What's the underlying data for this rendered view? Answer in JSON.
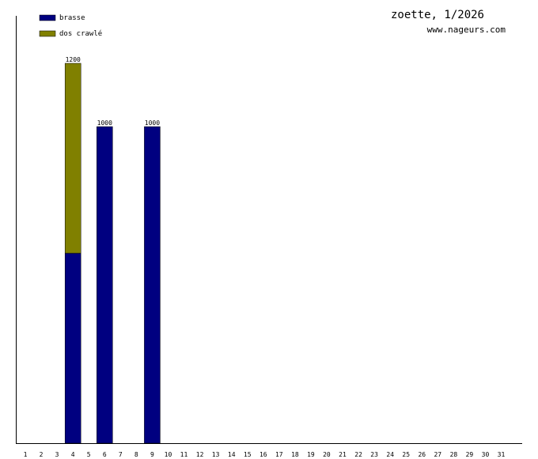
{
  "chart_data": {
    "type": "bar",
    "stacked": true,
    "title": "zoette, 1/2026",
    "subtitle": "www.nageurs.com",
    "categories": [
      "1",
      "2",
      "3",
      "4",
      "5",
      "6",
      "7",
      "8",
      "9",
      "10",
      "11",
      "12",
      "13",
      "14",
      "15",
      "16",
      "17",
      "18",
      "19",
      "20",
      "21",
      "22",
      "23",
      "24",
      "25",
      "26",
      "27",
      "28",
      "29",
      "30",
      "31"
    ],
    "series": [
      {
        "name": "brasse",
        "color": "#000080",
        "values": [
          0,
          0,
          0,
          600,
          0,
          1000,
          0,
          0,
          1000,
          0,
          0,
          0,
          0,
          0,
          0,
          0,
          0,
          0,
          0,
          0,
          0,
          0,
          0,
          0,
          0,
          0,
          0,
          0,
          0,
          0,
          0
        ]
      },
      {
        "name": "dos crawlé",
        "color": "#808000",
        "values": [
          0,
          0,
          0,
          600,
          0,
          0,
          0,
          0,
          0,
          0,
          0,
          0,
          0,
          0,
          0,
          0,
          0,
          0,
          0,
          0,
          0,
          0,
          0,
          0,
          0,
          0,
          0,
          0,
          0,
          0,
          0
        ]
      }
    ],
    "totals": [
      "",
      "",
      "",
      "1200",
      "",
      "1000",
      "",
      "",
      "1000",
      "",
      "",
      "",
      "",
      "",
      "",
      "",
      "",
      "",
      "",
      "",
      "",
      "",
      "",
      "",
      "",
      "",
      "",
      "",
      "",
      "",
      ""
    ],
    "ylim": [
      0,
      1400
    ],
    "grid": false,
    "legend": "top-left"
  }
}
